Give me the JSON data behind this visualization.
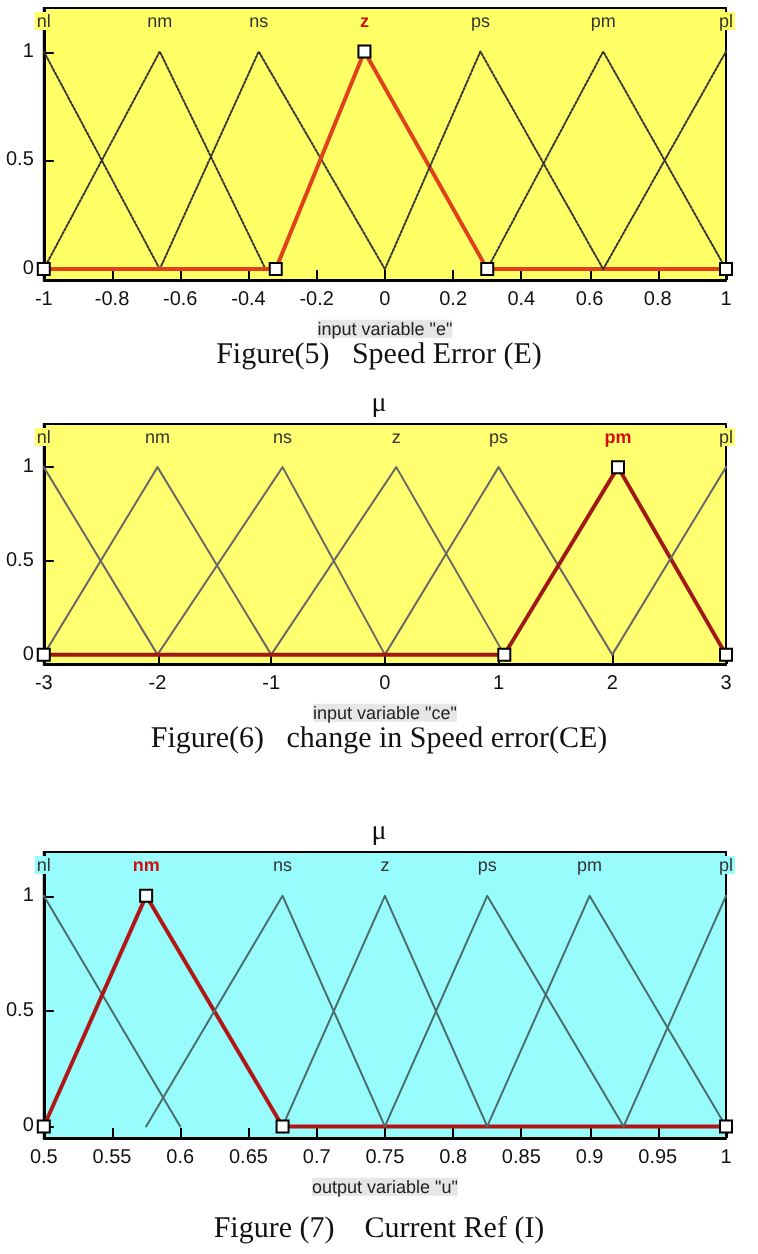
{
  "chart_data": [
    {
      "type": "line",
      "title": "Figure(5)   Speed Error (E)",
      "xlabel": "input variable \"e\"",
      "xlim": [
        -1,
        1
      ],
      "xticks": [
        -1,
        -0.8,
        -0.6,
        -0.4,
        -0.2,
        0,
        0.2,
        0.4,
        0.6,
        0.8,
        1
      ],
      "ylim": [
        -0.05,
        1.2
      ],
      "yticks": [
        0,
        0.5,
        1
      ],
      "grid": false,
      "legend": false,
      "series": [
        {
          "name": "nl",
          "color": "#333333",
          "line_style": "dotted",
          "marker": "none",
          "x": [
            -1,
            -0.66
          ],
          "values": [
            1,
            0
          ]
        },
        {
          "name": "nm",
          "color": "#333333",
          "line_style": "dotted",
          "marker": "none",
          "x": [
            -1,
            -0.66,
            -0.35
          ],
          "values": [
            0,
            1,
            0
          ]
        },
        {
          "name": "ns",
          "color": "#333333",
          "line_style": "dotted",
          "marker": "none",
          "x": [
            -0.66,
            -0.37,
            0
          ],
          "values": [
            0,
            1,
            0
          ]
        },
        {
          "name": "z",
          "color": "#e0401a",
          "line_style": "solid",
          "marker": "square",
          "x": [
            -1,
            -0.32,
            -0.06,
            0.3,
            1
          ],
          "values": [
            0,
            0,
            1,
            0,
            0
          ]
        },
        {
          "name": "ps",
          "color": "#333333",
          "line_style": "dotted",
          "marker": "none",
          "x": [
            0,
            0.28,
            0.64
          ],
          "values": [
            0,
            1,
            0
          ]
        },
        {
          "name": "pm",
          "color": "#333333",
          "line_style": "dotted",
          "marker": "none",
          "x": [
            0.3,
            0.64,
            1
          ],
          "values": [
            0,
            1,
            0
          ]
        },
        {
          "name": "pl",
          "color": "#333333",
          "line_style": "dotted",
          "marker": "none",
          "x": [
            0.64,
            1
          ],
          "values": [
            0,
            1
          ]
        }
      ]
    },
    {
      "type": "line",
      "title": "Figure(6)   change in Speed error(CE)",
      "xlabel": "input variable \"ce\"",
      "ylabel": "μ",
      "xlim": [
        -3,
        3
      ],
      "xticks": [
        -3,
        -2,
        -1,
        0,
        1,
        2,
        3
      ],
      "ylim": [
        -0.05,
        1.23
      ],
      "yticks": [
        0,
        0.5,
        1
      ],
      "grid": false,
      "legend": false,
      "series": [
        {
          "name": "nl",
          "color": "#666666",
          "line_style": "solid",
          "marker": "none",
          "x": [
            -3,
            -2
          ],
          "values": [
            1,
            0
          ]
        },
        {
          "name": "nm",
          "color": "#666666",
          "line_style": "solid",
          "marker": "none",
          "x": [
            -3,
            -2,
            -1
          ],
          "values": [
            0,
            1,
            0
          ]
        },
        {
          "name": "ns",
          "color": "#666666",
          "line_style": "solid",
          "marker": "none",
          "x": [
            -2,
            -0.9,
            0
          ],
          "values": [
            0,
            1,
            0
          ]
        },
        {
          "name": "z",
          "color": "#666666",
          "line_style": "solid",
          "marker": "none",
          "x": [
            -1,
            0.1,
            1.05
          ],
          "values": [
            0,
            1,
            0
          ]
        },
        {
          "name": "ps",
          "color": "#666666",
          "line_style": "solid",
          "marker": "none",
          "x": [
            0,
            1,
            2
          ],
          "values": [
            0,
            1,
            0
          ]
        },
        {
          "name": "pm",
          "color": "#a01818",
          "line_style": "solid",
          "marker": "square",
          "x": [
            -3,
            1.05,
            2.05,
            3
          ],
          "values": [
            0,
            0,
            1,
            0
          ]
        },
        {
          "name": "pl",
          "color": "#666666",
          "line_style": "solid",
          "marker": "none",
          "x": [
            2,
            3
          ],
          "values": [
            0,
            1
          ]
        }
      ]
    },
    {
      "type": "line",
      "title": "Figure (7)    Current Ref (I)",
      "xlabel": "output variable \"u\"",
      "ylabel": "μ",
      "xlim": [
        0.5,
        1
      ],
      "xticks": [
        0.5,
        0.55,
        0.6,
        0.65,
        0.7,
        0.75,
        0.8,
        0.85,
        0.9,
        0.95,
        1
      ],
      "ylim": [
        -0.05,
        1.19
      ],
      "yticks": [
        0,
        0.5,
        1
      ],
      "grid": false,
      "legend": false,
      "series": [
        {
          "name": "nl",
          "color": "#4a6a6a",
          "line_style": "solid",
          "marker": "none",
          "x": [
            0.5,
            0.6
          ],
          "values": [
            1,
            0
          ]
        },
        {
          "name": "nm",
          "color": "#b01818",
          "line_style": "solid",
          "marker": "square",
          "x": [
            0.5,
            0.575,
            0.675,
            1
          ],
          "values": [
            0,
            1,
            0,
            0
          ]
        },
        {
          "name": "ns",
          "color": "#4a6a6a",
          "line_style": "solid",
          "marker": "none",
          "x": [
            0.575,
            0.675,
            0.75
          ],
          "values": [
            0,
            1,
            0
          ]
        },
        {
          "name": "z",
          "color": "#4a6a6a",
          "line_style": "solid",
          "marker": "none",
          "x": [
            0.675,
            0.75,
            0.825
          ],
          "values": [
            0,
            1,
            0
          ]
        },
        {
          "name": "ps",
          "color": "#4a6a6a",
          "line_style": "solid",
          "marker": "none",
          "x": [
            0.75,
            0.825,
            0.925
          ],
          "values": [
            0,
            1,
            0
          ]
        },
        {
          "name": "pm",
          "color": "#4a6a6a",
          "line_style": "solid",
          "marker": "none",
          "x": [
            0.825,
            0.9,
            1
          ],
          "values": [
            0,
            1,
            0
          ]
        },
        {
          "name": "pl",
          "color": "#4a6a6a",
          "line_style": "solid",
          "marker": "none",
          "x": [
            0.925,
            1
          ],
          "values": [
            0,
            1
          ]
        }
      ]
    }
  ]
}
